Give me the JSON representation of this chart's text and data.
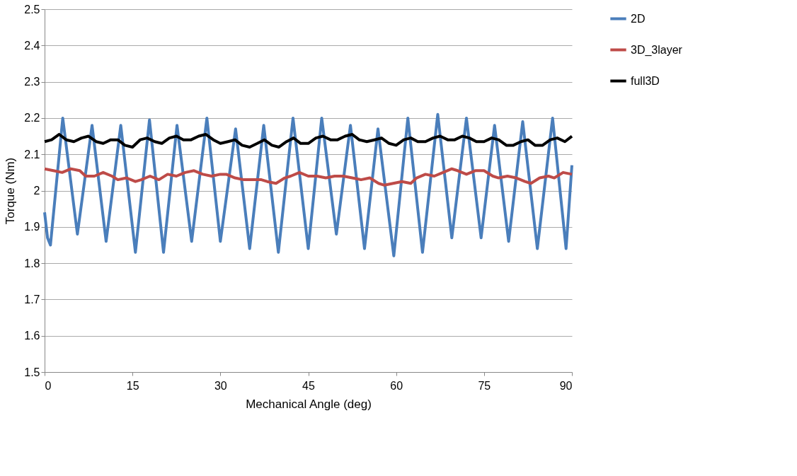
{
  "chart_data": {
    "type": "line",
    "xlabel": "Mechanical Angle (deg)",
    "ylabel": "Torque (Nm)",
    "xlim": [
      0,
      90
    ],
    "xticks": [
      0,
      15,
      30,
      45,
      60,
      75,
      90
    ],
    "ylim": [
      1.5,
      2.5
    ],
    "yticks": [
      1.5,
      1.6,
      1.7,
      1.8,
      1.9,
      2,
      2.1,
      2.2,
      2.3,
      2.4,
      2.5
    ],
    "grid": "y",
    "legend": "right",
    "line_style": "solid",
    "marker": "none",
    "series": [
      {
        "name": "2D",
        "color": "#4a7ebb",
        "x": [
          0,
          0.5,
          1.0,
          3.1,
          5.6,
          8.1,
          10.5,
          13.0,
          15.5,
          17.9,
          20.3,
          22.6,
          25.1,
          27.7,
          30.0,
          32.6,
          35.0,
          37.4,
          39.9,
          42.4,
          45.0,
          47.3,
          49.8,
          52.2,
          54.6,
          56.9,
          59.6,
          62.0,
          64.5,
          67.1,
          69.5,
          72.0,
          74.5,
          76.8,
          79.2,
          81.6,
          84.1,
          86.7,
          89.0,
          90
        ],
        "values": [
          1.94,
          1.87,
          1.85,
          2.2,
          1.88,
          2.18,
          1.86,
          2.18,
          1.83,
          2.195,
          1.83,
          2.18,
          1.86,
          2.2,
          1.86,
          2.17,
          1.84,
          2.18,
          1.83,
          2.2,
          1.84,
          2.2,
          1.88,
          2.18,
          1.84,
          2.17,
          1.82,
          2.2,
          1.83,
          2.21,
          1.87,
          2.2,
          1.87,
          2.18,
          1.86,
          2.19,
          1.84,
          2.2,
          1.84,
          2.07
        ]
      },
      {
        "name": "3D_3layer",
        "color": "#be4b48",
        "x": [
          0,
          1.5,
          3,
          4.5,
          6,
          7,
          8.5,
          10,
          11.5,
          12.5,
          14,
          15.5,
          16.5,
          18,
          19.5,
          21,
          22.5,
          24,
          25.5,
          27,
          28.5,
          30,
          31,
          32.5,
          34,
          35.5,
          37,
          38,
          39.5,
          41,
          42,
          43.5,
          45,
          46.5,
          48,
          49.5,
          51,
          52.5,
          54,
          55.5,
          57,
          58,
          59.5,
          61,
          62.5,
          63.5,
          65,
          66.5,
          68,
          69.5,
          70.5,
          72,
          73.5,
          75,
          76.5,
          77.5,
          79,
          80.5,
          82,
          83,
          84.5,
          86,
          87,
          88.5,
          90
        ],
        "values": [
          2.06,
          2.055,
          2.05,
          2.06,
          2.055,
          2.04,
          2.04,
          2.05,
          2.04,
          2.03,
          2.035,
          2.025,
          2.03,
          2.04,
          2.03,
          2.045,
          2.04,
          2.05,
          2.055,
          2.045,
          2.04,
          2.045,
          2.045,
          2.035,
          2.03,
          2.03,
          2.03,
          2.025,
          2.02,
          2.035,
          2.04,
          2.05,
          2.04,
          2.04,
          2.035,
          2.04,
          2.04,
          2.035,
          2.03,
          2.035,
          2.02,
          2.015,
          2.02,
          2.025,
          2.02,
          2.035,
          2.045,
          2.04,
          2.05,
          2.06,
          2.055,
          2.045,
          2.055,
          2.055,
          2.04,
          2.035,
          2.04,
          2.035,
          2.025,
          2.02,
          2.035,
          2.04,
          2.035,
          2.05,
          2.045
        ]
      },
      {
        "name": "full3D",
        "color": "#000000",
        "x": [
          0,
          1.2,
          2.5,
          3.7,
          5,
          6.3,
          7.5,
          8.8,
          10,
          11.3,
          12.5,
          13.7,
          15,
          16.3,
          17.5,
          18.8,
          20,
          21.3,
          22.5,
          23.7,
          25,
          26.3,
          27.5,
          28.8,
          30,
          31.3,
          32.5,
          33.7,
          35,
          36.3,
          37.5,
          38.8,
          40,
          41.3,
          42.5,
          43.7,
          45,
          46.3,
          47.5,
          48.8,
          50,
          51.3,
          52.5,
          53.7,
          55,
          56.3,
          57.5,
          58.8,
          60,
          61.3,
          62.5,
          63.7,
          65,
          66.3,
          67.5,
          68.8,
          70,
          71.3,
          72.5,
          73.7,
          75,
          76.3,
          77.5,
          78.8,
          80,
          81.3,
          82.5,
          83.7,
          85,
          86.3,
          87.5,
          88.8,
          90
        ],
        "values": [
          2.135,
          2.14,
          2.155,
          2.14,
          2.135,
          2.145,
          2.15,
          2.135,
          2.13,
          2.14,
          2.14,
          2.125,
          2.12,
          2.14,
          2.145,
          2.135,
          2.13,
          2.145,
          2.15,
          2.14,
          2.14,
          2.15,
          2.155,
          2.14,
          2.13,
          2.135,
          2.14,
          2.125,
          2.12,
          2.13,
          2.14,
          2.125,
          2.12,
          2.135,
          2.145,
          2.13,
          2.13,
          2.145,
          2.15,
          2.14,
          2.14,
          2.15,
          2.155,
          2.14,
          2.135,
          2.14,
          2.145,
          2.13,
          2.125,
          2.14,
          2.145,
          2.135,
          2.135,
          2.145,
          2.15,
          2.14,
          2.14,
          2.15,
          2.145,
          2.135,
          2.135,
          2.145,
          2.14,
          2.125,
          2.125,
          2.135,
          2.14,
          2.125,
          2.125,
          2.14,
          2.145,
          2.135,
          2.15
        ]
      }
    ]
  }
}
